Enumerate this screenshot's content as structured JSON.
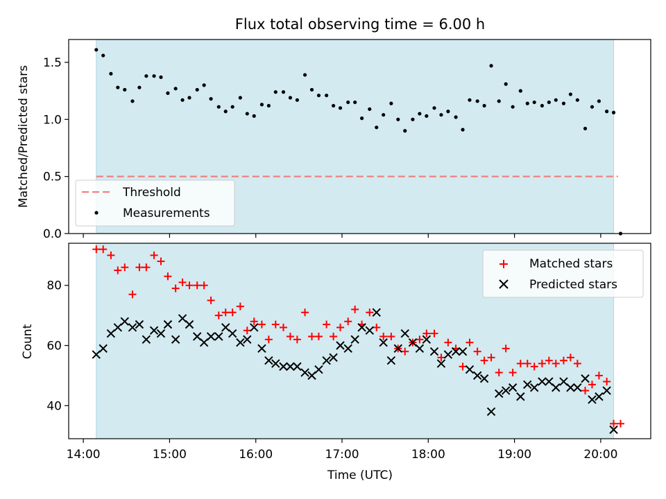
{
  "chart_data": [
    {
      "type": "scatter",
      "title": "Flux total observing time = 6.00 h",
      "xlabel": "",
      "ylabel": "Matched/Predicted stars",
      "x_unit": "hours UTC",
      "xlim": [
        13.83,
        20.58
      ],
      "ylim": [
        0.0,
        1.7
      ],
      "yticks": [
        "0.0",
        "0.5",
        "1.0",
        "1.5"
      ],
      "shaded_span": [
        14.15,
        20.15
      ],
      "shade_color": "#d3eaf0",
      "legend": {
        "position": "lower-left",
        "entries": [
          "Threshold",
          "Measurements"
        ]
      },
      "threshold": {
        "name": "Threshold",
        "y": 0.5,
        "x": [
          14.15,
          20.2
        ],
        "color": "#f08080"
      },
      "measurements": {
        "name": "Measurements",
        "color": "#000000",
        "points": [
          [
            14.15,
            1.61
          ],
          [
            14.23,
            1.56
          ],
          [
            14.32,
            1.4
          ],
          [
            14.4,
            1.28
          ],
          [
            14.48,
            1.26
          ],
          [
            14.57,
            1.16
          ],
          [
            14.65,
            1.28
          ],
          [
            14.73,
            1.38
          ],
          [
            14.82,
            1.38
          ],
          [
            14.9,
            1.37
          ],
          [
            14.98,
            1.23
          ],
          [
            15.07,
            1.27
          ],
          [
            15.15,
            1.17
          ],
          [
            15.23,
            1.19
          ],
          [
            15.32,
            1.26
          ],
          [
            15.4,
            1.3
          ],
          [
            15.48,
            1.18
          ],
          [
            15.57,
            1.11
          ],
          [
            15.65,
            1.07
          ],
          [
            15.73,
            1.11
          ],
          [
            15.82,
            1.19
          ],
          [
            15.9,
            1.05
          ],
          [
            15.98,
            1.03
          ],
          [
            16.07,
            1.13
          ],
          [
            16.15,
            1.12
          ],
          [
            16.23,
            1.24
          ],
          [
            16.32,
            1.24
          ],
          [
            16.4,
            1.19
          ],
          [
            16.48,
            1.17
          ],
          [
            16.57,
            1.39
          ],
          [
            16.65,
            1.26
          ],
          [
            16.73,
            1.21
          ],
          [
            16.82,
            1.21
          ],
          [
            16.9,
            1.12
          ],
          [
            16.98,
            1.1
          ],
          [
            17.07,
            1.15
          ],
          [
            17.15,
            1.15
          ],
          [
            17.23,
            1.01
          ],
          [
            17.32,
            1.09
          ],
          [
            17.4,
            0.93
          ],
          [
            17.48,
            1.04
          ],
          [
            17.57,
            1.14
          ],
          [
            17.65,
            1.0
          ],
          [
            17.73,
            0.9
          ],
          [
            17.82,
            1.0
          ],
          [
            17.9,
            1.05
          ],
          [
            17.98,
            1.03
          ],
          [
            18.07,
            1.1
          ],
          [
            18.15,
            1.04
          ],
          [
            18.23,
            1.07
          ],
          [
            18.32,
            1.02
          ],
          [
            18.4,
            0.91
          ],
          [
            18.48,
            1.17
          ],
          [
            18.57,
            1.16
          ],
          [
            18.65,
            1.12
          ],
          [
            18.73,
            1.47
          ],
          [
            18.82,
            1.16
          ],
          [
            18.9,
            1.31
          ],
          [
            18.98,
            1.11
          ],
          [
            19.07,
            1.25
          ],
          [
            19.15,
            1.14
          ],
          [
            19.23,
            1.15
          ],
          [
            19.32,
            1.12
          ],
          [
            19.4,
            1.15
          ],
          [
            19.48,
            1.17
          ],
          [
            19.57,
            1.14
          ],
          [
            19.65,
            1.22
          ],
          [
            19.73,
            1.17
          ],
          [
            19.82,
            0.92
          ],
          [
            19.9,
            1.11
          ],
          [
            19.98,
            1.16
          ],
          [
            20.07,
            1.07
          ],
          [
            20.15,
            1.06
          ],
          [
            20.23,
            0.0
          ]
        ]
      }
    },
    {
      "type": "scatter",
      "title": "",
      "xlabel": "Time (UTC)",
      "ylabel": "Count",
      "x_unit": "hours UTC",
      "xlim": [
        13.83,
        20.58
      ],
      "ylim": [
        29,
        94
      ],
      "yticks": [
        "40",
        "60",
        "80"
      ],
      "xticks": [
        "14:00",
        "15:00",
        "16:00",
        "17:00",
        "18:00",
        "19:00",
        "20:00"
      ],
      "shaded_span": [
        14.15,
        20.15
      ],
      "legend": {
        "position": "top-right",
        "entries": [
          "Matched stars",
          "Predicted stars"
        ]
      },
      "series": [
        {
          "name": "Matched stars",
          "marker": "plus",
          "color": "#ff0000",
          "points": [
            [
              14.15,
              92
            ],
            [
              14.23,
              92
            ],
            [
              14.32,
              90
            ],
            [
              14.4,
              85
            ],
            [
              14.48,
              86
            ],
            [
              14.57,
              77
            ],
            [
              14.65,
              86
            ],
            [
              14.73,
              86
            ],
            [
              14.82,
              90
            ],
            [
              14.9,
              88
            ],
            [
              14.98,
              83
            ],
            [
              15.07,
              79
            ],
            [
              15.15,
              81
            ],
            [
              15.23,
              80
            ],
            [
              15.32,
              80
            ],
            [
              15.4,
              80
            ],
            [
              15.48,
              75
            ],
            [
              15.57,
              70
            ],
            [
              15.65,
              71
            ],
            [
              15.73,
              71
            ],
            [
              15.82,
              73
            ],
            [
              15.9,
              65
            ],
            [
              15.98,
              68
            ],
            [
              16.07,
              67
            ],
            [
              16.15,
              62
            ],
            [
              16.23,
              67
            ],
            [
              16.32,
              66
            ],
            [
              16.4,
              63
            ],
            [
              16.48,
              62
            ],
            [
              16.57,
              71
            ],
            [
              16.65,
              63
            ],
            [
              16.73,
              63
            ],
            [
              16.82,
              67
            ],
            [
              16.9,
              63
            ],
            [
              16.98,
              66
            ],
            [
              17.07,
              68
            ],
            [
              17.15,
              72
            ],
            [
              17.23,
              67
            ],
            [
              17.32,
              71
            ],
            [
              17.4,
              66
            ],
            [
              17.48,
              63
            ],
            [
              17.57,
              63
            ],
            [
              17.65,
              59
            ],
            [
              17.73,
              58
            ],
            [
              17.82,
              61
            ],
            [
              17.9,
              62
            ],
            [
              17.98,
              64
            ],
            [
              18.07,
              64
            ],
            [
              18.15,
              56
            ],
            [
              18.23,
              61
            ],
            [
              18.32,
              59
            ],
            [
              18.4,
              53
            ],
            [
              18.48,
              61
            ],
            [
              18.57,
              58
            ],
            [
              18.65,
              55
            ],
            [
              18.73,
              56
            ],
            [
              18.82,
              51
            ],
            [
              18.9,
              59
            ],
            [
              18.98,
              51
            ],
            [
              19.07,
              54
            ],
            [
              19.15,
              54
            ],
            [
              19.23,
              53
            ],
            [
              19.32,
              54
            ],
            [
              19.4,
              55
            ],
            [
              19.48,
              54
            ],
            [
              19.57,
              55
            ],
            [
              19.65,
              56
            ],
            [
              19.73,
              54
            ],
            [
              19.82,
              45
            ],
            [
              19.9,
              47
            ],
            [
              19.98,
              50
            ],
            [
              20.07,
              48
            ],
            [
              20.15,
              34
            ],
            [
              20.23,
              34
            ]
          ]
        },
        {
          "name": "Predicted stars",
          "marker": "x",
          "color": "#000000",
          "points": [
            [
              14.15,
              57
            ],
            [
              14.23,
              59
            ],
            [
              14.32,
              64
            ],
            [
              14.4,
              66
            ],
            [
              14.48,
              68
            ],
            [
              14.57,
              66
            ],
            [
              14.65,
              67
            ],
            [
              14.73,
              62
            ],
            [
              14.82,
              65
            ],
            [
              14.9,
              64
            ],
            [
              14.98,
              67
            ],
            [
              15.07,
              62
            ],
            [
              15.15,
              69
            ],
            [
              15.23,
              67
            ],
            [
              15.32,
              63
            ],
            [
              15.4,
              61
            ],
            [
              15.48,
              63
            ],
            [
              15.57,
              63
            ],
            [
              15.65,
              66
            ],
            [
              15.73,
              64
            ],
            [
              15.82,
              61
            ],
            [
              15.9,
              62
            ],
            [
              15.98,
              66
            ],
            [
              16.07,
              59
            ],
            [
              16.15,
              55
            ],
            [
              16.23,
              54
            ],
            [
              16.32,
              53
            ],
            [
              16.4,
              53
            ],
            [
              16.48,
              53
            ],
            [
              16.57,
              51
            ],
            [
              16.65,
              50
            ],
            [
              16.73,
              52
            ],
            [
              16.82,
              55
            ],
            [
              16.9,
              56
            ],
            [
              16.98,
              60
            ],
            [
              17.07,
              59
            ],
            [
              17.15,
              62
            ],
            [
              17.23,
              66
            ],
            [
              17.32,
              65
            ],
            [
              17.4,
              71
            ],
            [
              17.48,
              61
            ],
            [
              17.57,
              55
            ],
            [
              17.65,
              59
            ],
            [
              17.73,
              64
            ],
            [
              17.82,
              61
            ],
            [
              17.9,
              59
            ],
            [
              17.98,
              62
            ],
            [
              18.07,
              58
            ],
            [
              18.15,
              54
            ],
            [
              18.23,
              57
            ],
            [
              18.32,
              58
            ],
            [
              18.4,
              58
            ],
            [
              18.48,
              52
            ],
            [
              18.57,
              50
            ],
            [
              18.65,
              49
            ],
            [
              18.73,
              38
            ],
            [
              18.82,
              44
            ],
            [
              18.9,
              45
            ],
            [
              18.98,
              46
            ],
            [
              19.07,
              43
            ],
            [
              19.15,
              47
            ],
            [
              19.23,
              46
            ],
            [
              19.32,
              48
            ],
            [
              19.4,
              48
            ],
            [
              19.48,
              46
            ],
            [
              19.57,
              48
            ],
            [
              19.65,
              46
            ],
            [
              19.73,
              46
            ],
            [
              19.82,
              49
            ],
            [
              19.9,
              42
            ],
            [
              19.98,
              43
            ],
            [
              20.07,
              45
            ],
            [
              20.15,
              32
            ]
          ]
        }
      ]
    }
  ]
}
